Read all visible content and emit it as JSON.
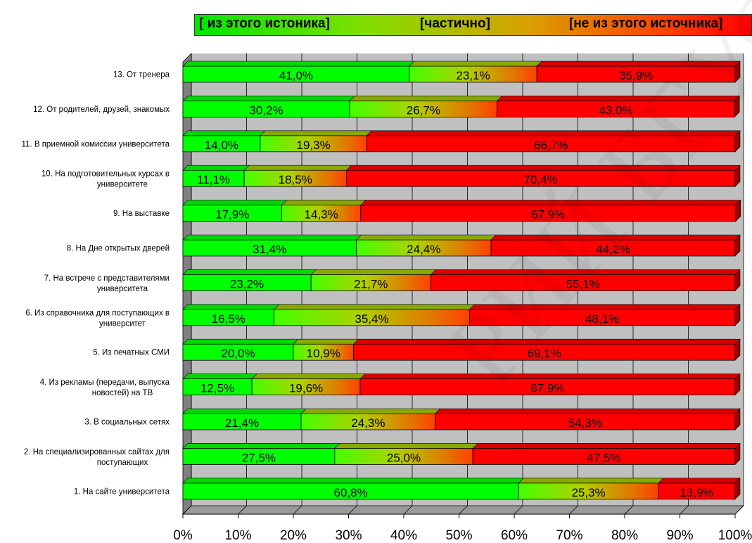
{
  "legend": {
    "left": "[ из этого истоника]",
    "mid": "[частично]",
    "right": "[не из этого источника]"
  },
  "watermark": "РИЙ БГУФК",
  "colors": {
    "from_source": "#00ff00",
    "partial_start": "#44ff00",
    "partial_end": "#ff5a00",
    "not_from_source": "#ff0000",
    "plot_background": "#c0c0c0",
    "grid": "#000000"
  },
  "chart_data": {
    "type": "bar",
    "stacked": true,
    "orientation": "horizontal",
    "3d": true,
    "xlim": [
      0,
      100
    ],
    "x_ticks": [
      "0%",
      "10%",
      "20%",
      "30%",
      "40%",
      "50%",
      "60%",
      "70%",
      "80%",
      "90%",
      "100%"
    ],
    "categories": [
      [
        "13. От тренера"
      ],
      [
        "12. От родителей, друзей, знакомых"
      ],
      [
        "11. В приемной комиссии университета"
      ],
      [
        "10. На подготовительных курсах в",
        "университете"
      ],
      [
        "9. На выставке"
      ],
      [
        "8. На Дне открытых дверей"
      ],
      [
        "7. На встрече с представителями",
        "университета"
      ],
      [
        "6. Из справочника для поступающих в",
        "университет"
      ],
      [
        "5. Из печатных СМИ"
      ],
      [
        "4. Из рекламы (передачи, выпуска",
        "новостей) на ТВ"
      ],
      [
        "3. В социальных сетях"
      ],
      [
        "2. На специализированных сайтах для",
        "поступающих"
      ],
      [
        "1. На сайте университета"
      ]
    ],
    "series": [
      {
        "name": "[ из этого истоника]",
        "values": [
          41.0,
          30.2,
          14.0,
          11.1,
          17.9,
          31.4,
          23.2,
          16.5,
          20.0,
          12.5,
          21.4,
          27.5,
          60.8
        ],
        "labels": [
          "41,0%",
          "30,2%",
          "14,0%",
          "11,1%",
          "17,9%",
          "31,4%",
          "23,2%",
          "16,5%",
          "20,0%",
          "12,5%",
          "21,4%",
          "27,5%",
          "60,8%"
        ]
      },
      {
        "name": "[частично]",
        "values": [
          23.1,
          26.7,
          19.3,
          18.5,
          14.3,
          24.4,
          21.7,
          35.4,
          10.9,
          19.6,
          24.3,
          25.0,
          25.3
        ],
        "labels": [
          "23,1%",
          "26,7%",
          "19,3%",
          "18,5%",
          "14,3%",
          "24,4%",
          "21,7%",
          "35,4%",
          "10,9%",
          "19,6%",
          "24,3%",
          "25,0%",
          "25,3%"
        ]
      },
      {
        "name": "[не из этого источника]",
        "values": [
          35.9,
          43.0,
          66.7,
          70.4,
          67.9,
          44.2,
          55.1,
          48.1,
          69.1,
          67.9,
          54.3,
          47.5,
          13.9
        ],
        "labels": [
          "35,9%",
          "43,0%",
          "66,7%",
          "70,4%",
          "67,9%",
          "44,2%",
          "55,1%",
          "48,1%",
          "69,1%",
          "67,9%",
          "54,3%",
          "47,5%",
          "13,9%"
        ]
      }
    ]
  }
}
